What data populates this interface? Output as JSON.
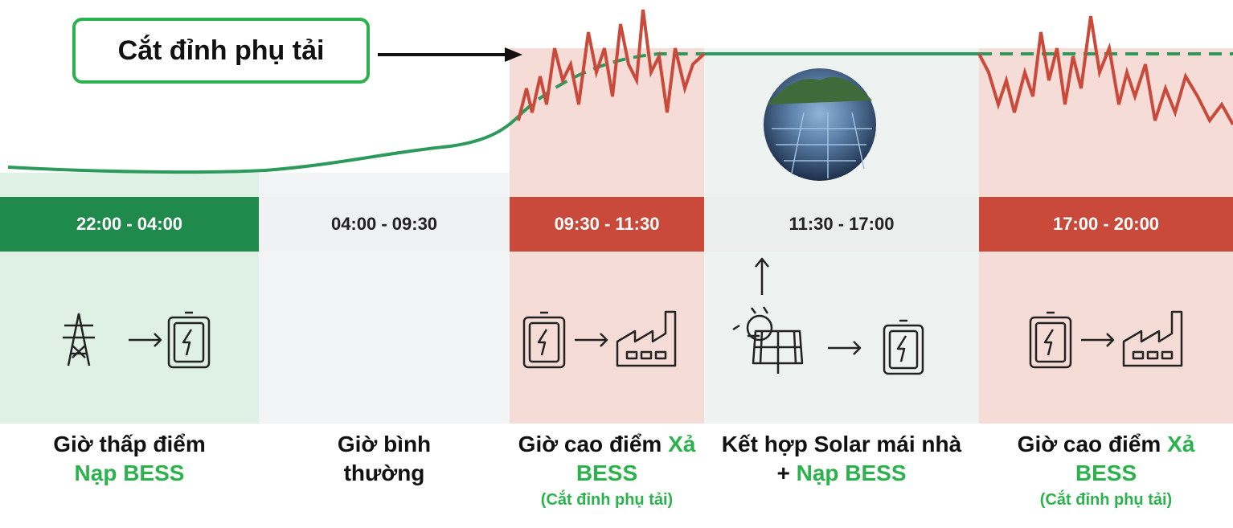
{
  "callout": "Cắt đỉnh phụ tải",
  "columns": [
    {
      "time": "22:00 - 04:00",
      "caption": "Giờ thấp điểm",
      "action": "Nạp BESS"
    },
    {
      "time": "04:00 - 09:30",
      "caption": "Giờ bình thường"
    },
    {
      "time": "09:30 - 11:30",
      "caption": "Giờ cao điểm",
      "action": "Xả BESS",
      "note": "(Cắt đỉnh phụ tải)"
    },
    {
      "time": "11:30 - 17:00",
      "caption": "Kết hợp Solar mái nhà +",
      "action": "Nạp BESS"
    },
    {
      "time": "17:00 - 20:00",
      "caption": "Giờ cao điểm",
      "action": "Xả BESS",
      "note": "(Cắt đỉnh phụ tải)"
    }
  ]
}
